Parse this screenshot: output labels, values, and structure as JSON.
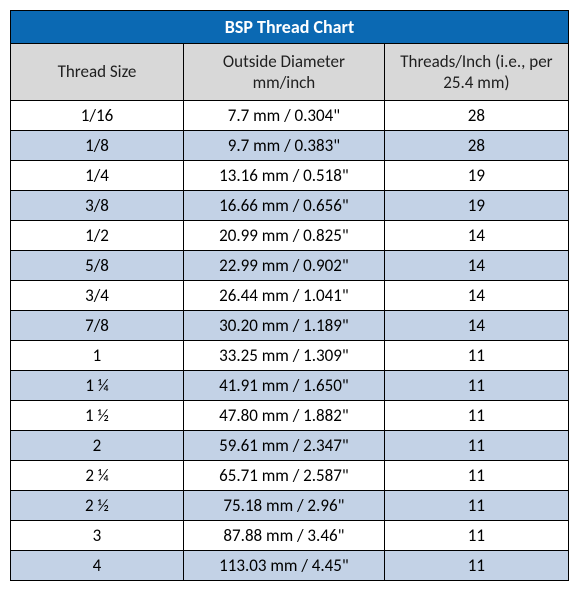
{
  "table": {
    "type": "table",
    "title": "BSP Thread Chart",
    "columns": [
      "Thread Size",
      "Outside Diameter mm/inch",
      "Threads/Inch (i.e., per 25.4 mm)"
    ],
    "column_widths_pct": [
      31,
      36,
      33
    ],
    "rows": [
      [
        "1/16",
        "7.7 mm / 0.304\"",
        "28"
      ],
      [
        "1/8",
        "9.7 mm / 0.383\"",
        "28"
      ],
      [
        "1/4",
        "13.16 mm / 0.518\"",
        "19"
      ],
      [
        "3/8",
        "16.66 mm / 0.656\"",
        "19"
      ],
      [
        "1/2",
        "20.99 mm / 0.825\"",
        "14"
      ],
      [
        "5/8",
        "22.99 mm / 0.902\"",
        "14"
      ],
      [
        "3/4",
        "26.44 mm / 1.041\"",
        "14"
      ],
      [
        "7/8",
        "30.20 mm / 1.189\"",
        "14"
      ],
      [
        "1",
        "33.25 mm / 1.309\"",
        "11"
      ],
      [
        "1 ¼",
        "41.91 mm / 1.650\"",
        "11"
      ],
      [
        "1 ½",
        "47.80 mm / 1.882\"",
        "11"
      ],
      [
        "2",
        "59.61 mm / 2.347\"",
        "11"
      ],
      [
        "2 ¼",
        "65.71 mm / 2.587\"",
        "11"
      ],
      [
        "2 ½",
        "75.18 mm / 2.96\"",
        "11"
      ],
      [
        "3",
        "87.88 mm / 3.46\"",
        "11"
      ],
      [
        "4",
        "113.03 mm / 4.45\"",
        "11"
      ]
    ],
    "colors": {
      "title_bg": "#0b69b3",
      "title_fg": "#ffffff",
      "header_bg": "#d8d8d8",
      "header_fg": "#1f1f1f",
      "row_even_bg": "#ffffff",
      "row_odd_bg": "#c3d2e6",
      "border": "#000000",
      "page_bg": "#ffffff"
    },
    "font_family": "Calibri, Arial, sans-serif",
    "title_fontsize": 18,
    "header_fontsize": 17,
    "cell_fontsize": 17
  }
}
